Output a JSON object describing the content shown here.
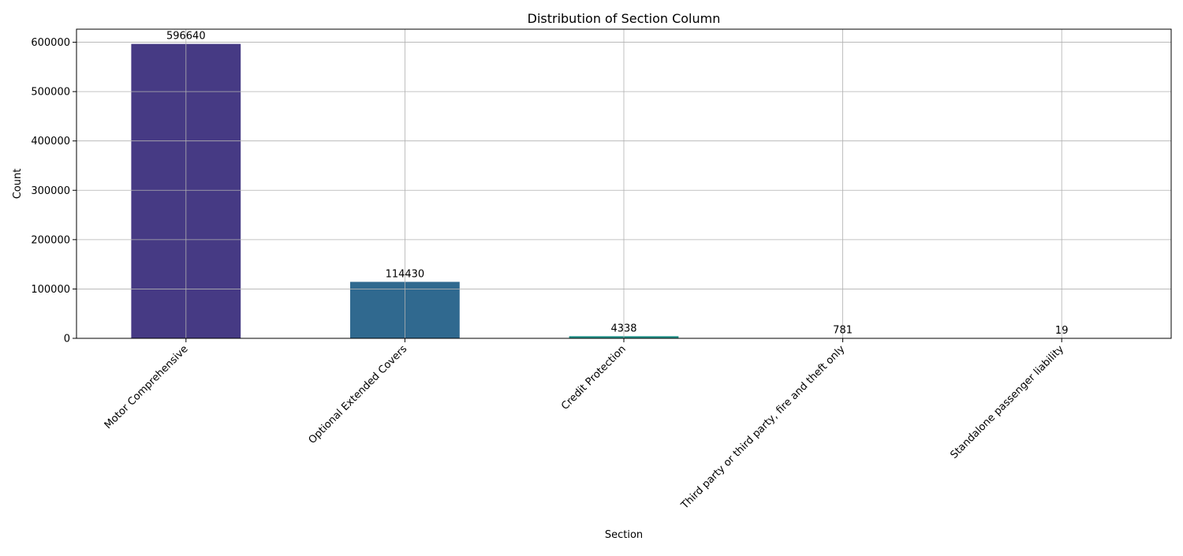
{
  "chart_data": {
    "type": "bar",
    "title": "Distribution of Section Column",
    "xlabel": "Section",
    "ylabel": "Count",
    "categories": [
      "Motor Comprehensive",
      "Optional Extended Covers",
      "Credit Protection",
      "Third party or third party, fire and theft only",
      "Standalone passenger liability"
    ],
    "values": [
      596640,
      114430,
      4338,
      781,
      19
    ],
    "value_labels": [
      "596640",
      "114430",
      "4338",
      "781",
      "19"
    ],
    "colors": [
      "#463a84",
      "#30698f",
      "#23938a",
      "#2a9d7c",
      "#3aa676"
    ],
    "ylim": [
      0,
      626473
    ],
    "yticks": [
      0,
      100000,
      200000,
      300000,
      400000,
      500000,
      600000
    ],
    "ytick_labels": [
      "0",
      "100000",
      "200000",
      "300000",
      "400000",
      "500000",
      "600000"
    ],
    "grid": true,
    "x_tick_rotation_deg": 45
  }
}
